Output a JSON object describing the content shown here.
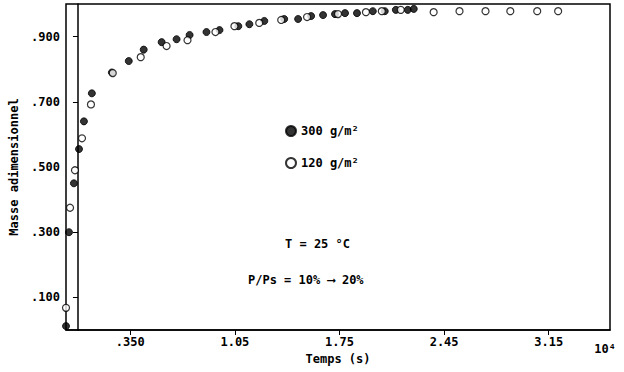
{
  "chart_data": {
    "type": "scatter",
    "x_label": "Temps (s)",
    "y_label": "Masse adimensionnel",
    "annotations": [
      "T = 25 °C",
      "P/Ps = 10% ⟶ 20%",
      "10⁴"
    ],
    "xlim": [
      -0.08,
      3.56
    ],
    "xticks": [
      {
        "value": 0.35,
        "label": ".350"
      },
      1.05,
      1.75,
      2.45,
      3.15
    ],
    "ylim": [
      0,
      1.0
    ],
    "yticks": [
      {
        "value": 0.1,
        "label": ".100"
      },
      {
        "value": 0.3,
        "label": ".300"
      },
      {
        "value": 0.5,
        "label": ".500"
      },
      {
        "value": 0.7,
        "label": ".700"
      },
      {
        "value": 0.9,
        "label": ".900"
      }
    ],
    "grid": false,
    "legend": "center",
    "series": [
      {
        "name": "300 g/m²",
        "color": "#000000",
        "marker": "circle",
        "x": [
          -0.08,
          -0.06,
          -0.027,
          0.007,
          0.04,
          0.093,
          0.227,
          0.34,
          0.44,
          0.56,
          0.66,
          0.747,
          0.86,
          0.947,
          1.073,
          1.147,
          1.247,
          1.38,
          1.473,
          1.56,
          1.64,
          1.72,
          1.787,
          1.867,
          1.973,
          2.053,
          2.127,
          2.207,
          2.247
        ],
        "values": [
          0.012,
          0.3,
          0.45,
          0.555,
          0.64,
          0.726,
          0.79,
          0.825,
          0.86,
          0.883,
          0.892,
          0.905,
          0.914,
          0.92,
          0.932,
          0.938,
          0.948,
          0.954,
          0.954,
          0.963,
          0.966,
          0.969,
          0.972,
          0.972,
          0.978,
          0.978,
          0.982,
          0.982,
          0.985
        ]
      },
      {
        "name": "120 g/m²",
        "color": "#000000",
        "marker": "open_circle",
        "x": [
          -0.08,
          -0.053,
          -0.02,
          0.027,
          0.087,
          0.233,
          0.42,
          0.593,
          0.733,
          0.92,
          1.047,
          1.213,
          1.36,
          1.533,
          1.74,
          1.927,
          2.033,
          2.16,
          2.38,
          2.553,
          2.727,
          2.893,
          3.073,
          3.213
        ],
        "values": [
          0.068,
          0.375,
          0.49,
          0.588,
          0.692,
          0.788,
          0.837,
          0.871,
          0.889,
          0.914,
          0.932,
          0.942,
          0.951,
          0.96,
          0.969,
          0.975,
          0.978,
          0.982,
          0.975,
          0.978,
          0.978,
          0.978,
          0.978,
          0.978
        ]
      }
    ]
  }
}
